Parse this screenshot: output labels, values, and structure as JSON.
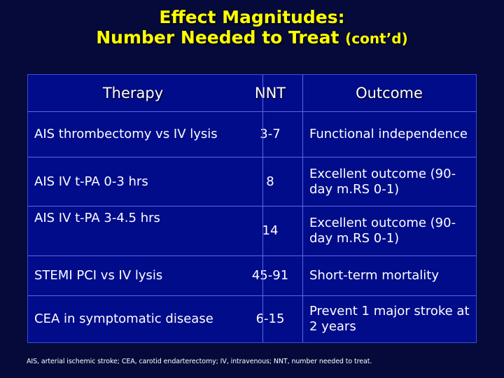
{
  "title": {
    "line1": "Effect Magnitudes:",
    "line2": "Number Needed to Treat",
    "line2_suffix": "(cont’d)"
  },
  "table": {
    "headers": [
      "Therapy",
      "NNT",
      "Outcome"
    ],
    "rows": [
      {
        "therapy": "AIS thrombectomy vs IV lysis",
        "nnt": "3-7",
        "outcome": "Functional independence"
      },
      {
        "therapy": "AIS IV t-PA 0-3 hrs",
        "nnt": "8",
        "outcome": "Excellent outcome (90-day m.RS 0-1)"
      },
      {
        "therapy": "AIS IV t-PA 3-4.5 hrs",
        "nnt": "14",
        "outcome": "Excellent outcome (90-day m.RS 0-1)"
      },
      {
        "therapy": "STEMI PCI vs IV lysis",
        "nnt": "45-91",
        "outcome": "Short-term mortality"
      },
      {
        "therapy": "CEA in symptomatic disease",
        "nnt": "6-15",
        "outcome": "Prevent 1 major stroke at 2 years"
      }
    ]
  },
  "footnote": "AIS, arterial ischemic stroke; CEA, carotid endarterectomy; IV, intravenous; NNT, number needed to treat.",
  "colors": {
    "background": "#050a3a",
    "table_fill": "#000c8a",
    "title": "#ffff00",
    "text": "#ffffff"
  }
}
